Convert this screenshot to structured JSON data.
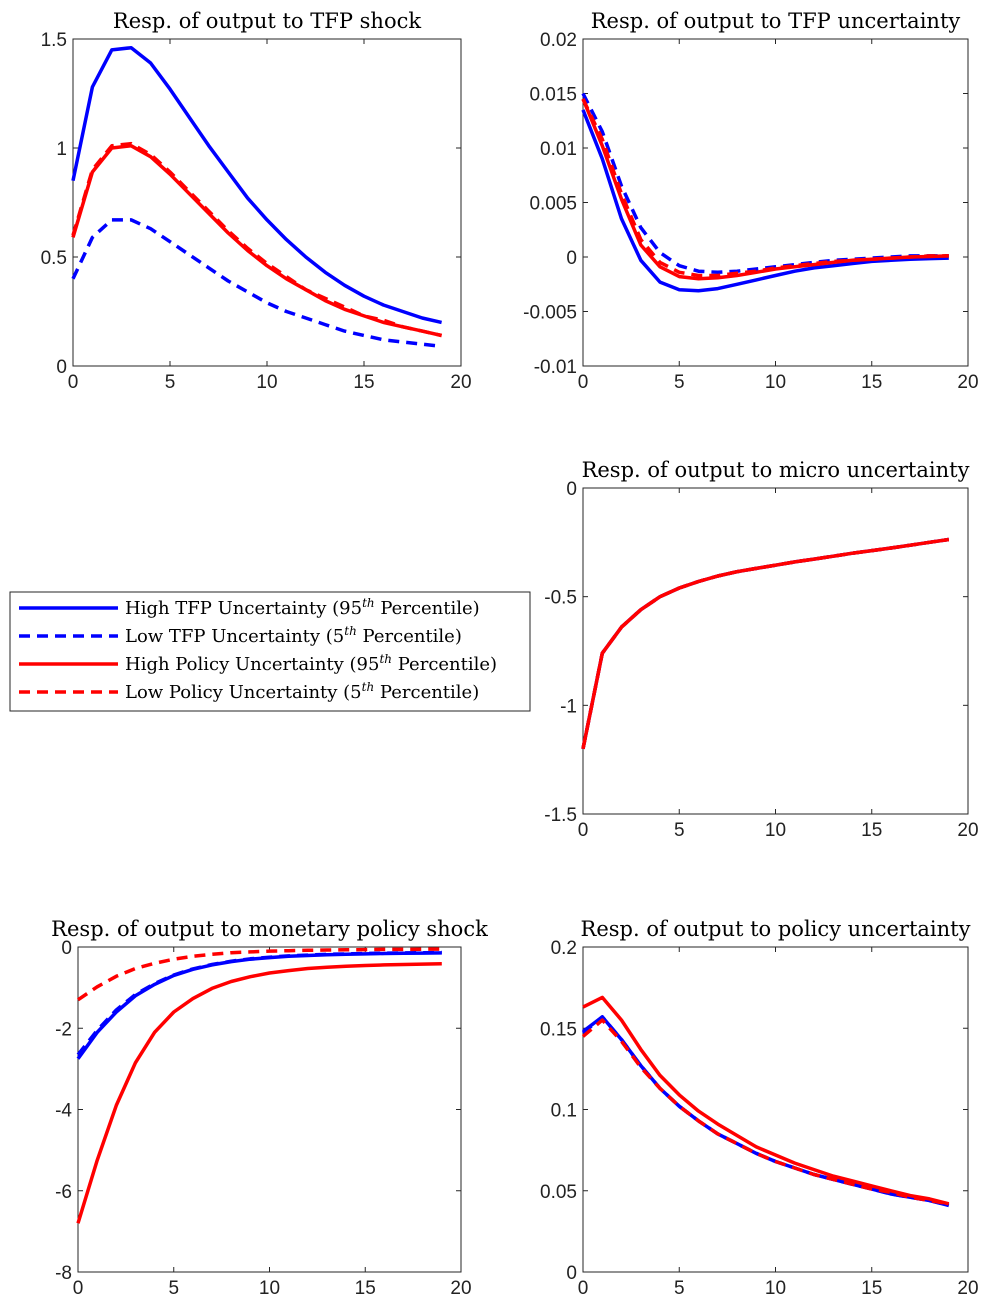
{
  "legend": {
    "entries": [
      {
        "pre": "High TFP Uncertainty (95",
        "sup": "th",
        "post": " Percentile)",
        "color": "#0000ff",
        "dash": false
      },
      {
        "pre": "Low TFP Uncertainty (5",
        "sup": "th",
        "post": " Percentile)",
        "color": "#0000ff",
        "dash": true
      },
      {
        "pre": "High Policy Uncertainty (95",
        "sup": "th",
        "post": " Percentile)",
        "color": "#ff0000",
        "dash": false
      },
      {
        "pre": "Low Policy Uncertainty (5",
        "sup": "th",
        "post": " Percentile)",
        "color": "#ff0000",
        "dash": true
      }
    ]
  },
  "chart_data": [
    {
      "type": "line",
      "title": "Resp. of output to TFP shock",
      "xlim": [
        0,
        20
      ],
      "ylim": [
        0,
        1.5
      ],
      "xticks": [
        0,
        5,
        10,
        15,
        20
      ],
      "xtick_labels": [
        "0",
        "5",
        "10",
        "15",
        "20"
      ],
      "yticks": [
        0,
        0.5,
        1,
        1.5
      ],
      "ytick_labels": [
        "0",
        "0.5",
        "1",
        "1.5"
      ],
      "x": [
        0,
        1,
        2,
        3,
        4,
        5,
        6,
        7,
        8,
        9,
        10,
        11,
        12,
        13,
        14,
        15,
        16,
        17,
        18,
        19
      ],
      "series": [
        {
          "color": "#0000ff",
          "dash": false,
          "values": [
            0.85,
            1.28,
            1.45,
            1.46,
            1.39,
            1.27,
            1.14,
            1.01,
            0.89,
            0.77,
            0.67,
            0.58,
            0.5,
            0.43,
            0.37,
            0.32,
            0.28,
            0.25,
            0.22,
            0.2
          ]
        },
        {
          "color": "#0000ff",
          "dash": true,
          "values": [
            0.4,
            0.59,
            0.67,
            0.67,
            0.63,
            0.57,
            0.51,
            0.45,
            0.39,
            0.34,
            0.29,
            0.25,
            0.22,
            0.19,
            0.16,
            0.14,
            0.12,
            0.11,
            0.1,
            0.09
          ]
        },
        {
          "color": "#ff0000",
          "dash": false,
          "values": [
            0.59,
            0.89,
            1.0,
            1.01,
            0.96,
            0.88,
            0.79,
            0.7,
            0.61,
            0.53,
            0.46,
            0.4,
            0.35,
            0.3,
            0.26,
            0.23,
            0.2,
            0.18,
            0.16,
            0.14
          ]
        },
        {
          "color": "#ff0000",
          "dash": true,
          "values": [
            0.6,
            0.9,
            1.01,
            1.02,
            0.97,
            0.89,
            0.8,
            0.71,
            0.62,
            0.54,
            0.47,
            0.41,
            0.35,
            0.31,
            0.27,
            0.23,
            0.21,
            0.18,
            0.16,
            0.14
          ]
        }
      ]
    },
    {
      "type": "line",
      "title": "Resp. of output to TFP uncertainty",
      "xlim": [
        0,
        20
      ],
      "ylim": [
        -0.01,
        0.02
      ],
      "xticks": [
        0,
        5,
        10,
        15,
        20
      ],
      "xtick_labels": [
        "0",
        "5",
        "10",
        "15",
        "20"
      ],
      "yticks": [
        -0.01,
        -0.005,
        0,
        0.005,
        0.01,
        0.015,
        0.02
      ],
      "ytick_labels": [
        "-0.01",
        "-0.005",
        "0",
        "0.005",
        "0.01",
        "0.015",
        "0.02"
      ],
      "x": [
        0,
        1,
        2,
        3,
        4,
        5,
        6,
        7,
        8,
        9,
        10,
        11,
        12,
        13,
        14,
        15,
        16,
        17,
        18,
        19
      ],
      "series": [
        {
          "color": "#0000ff",
          "dash": false,
          "values": [
            0.0135,
            0.009,
            0.0035,
            -0.0003,
            -0.0023,
            -0.003,
            -0.0031,
            -0.0029,
            -0.0025,
            -0.0021,
            -0.0017,
            -0.0013,
            -0.001,
            -0.0008,
            -0.0006,
            -0.0004,
            -0.0003,
            -0.0002,
            -0.00015,
            -0.0001
          ]
        },
        {
          "color": "#0000ff",
          "dash": true,
          "values": [
            0.015,
            0.0115,
            0.0065,
            0.0027,
            0.0004,
            -0.0008,
            -0.0013,
            -0.0014,
            -0.0013,
            -0.0011,
            -0.0009,
            -0.0007,
            -0.0005,
            -0.0003,
            -0.0002,
            -0.0001,
            0,
            0.0001,
            0.0001,
            0.0001
          ]
        },
        {
          "color": "#ff0000",
          "dash": false,
          "values": [
            0.0145,
            0.0102,
            0.0053,
            0.0011,
            -0.0009,
            -0.0018,
            -0.002,
            -0.0019,
            -0.0017,
            -0.0014,
            -0.0011,
            -0.0009,
            -0.0007,
            -0.0005,
            -0.0003,
            -0.0002,
            -0.0001,
            0,
            5e-05,
            0.0001
          ]
        },
        {
          "color": "#ff0000",
          "dash": true,
          "values": [
            0.0145,
            0.0108,
            0.0058,
            0.0016,
            -0.0005,
            -0.0014,
            -0.0017,
            -0.0017,
            -0.0015,
            -0.0013,
            -0.001,
            -0.0008,
            -0.0006,
            -0.0004,
            -0.0003,
            -0.0002,
            -0.0001,
            0,
            0.0001,
            0.0001
          ]
        }
      ]
    },
    {
      "type": "line",
      "title": "Resp. of output to micro uncertainty",
      "xlim": [
        0,
        20
      ],
      "ylim": [
        -1.5,
        0
      ],
      "xticks": [
        0,
        5,
        10,
        15,
        20
      ],
      "xtick_labels": [
        "0",
        "5",
        "10",
        "15",
        "20"
      ],
      "yticks": [
        -1.5,
        -1,
        -0.5,
        0
      ],
      "ytick_labels": [
        "-1.5",
        "-1",
        "-0.5",
        "0"
      ],
      "x": [
        0,
        1,
        2,
        3,
        4,
        5,
        6,
        7,
        8,
        9,
        10,
        11,
        12,
        13,
        14,
        15,
        16,
        17,
        18,
        19
      ],
      "series": [
        {
          "color": "#0000ff",
          "dash": false,
          "values": [
            -1.2,
            -0.76,
            -0.64,
            -0.56,
            -0.5,
            -0.46,
            -0.43,
            -0.405,
            -0.385,
            -0.37,
            -0.355,
            -0.34,
            -0.327,
            -0.314,
            -0.3,
            -0.288,
            -0.276,
            -0.263,
            -0.25,
            -0.237
          ]
        },
        {
          "color": "#0000ff",
          "dash": true,
          "values": [
            -1.2,
            -0.76,
            -0.64,
            -0.56,
            -0.5,
            -0.46,
            -0.43,
            -0.405,
            -0.385,
            -0.37,
            -0.355,
            -0.34,
            -0.327,
            -0.314,
            -0.3,
            -0.288,
            -0.276,
            -0.263,
            -0.25,
            -0.237
          ]
        },
        {
          "color": "#ff0000",
          "dash": true,
          "values": [
            -1.2,
            -0.76,
            -0.64,
            -0.56,
            -0.5,
            -0.46,
            -0.43,
            -0.405,
            -0.385,
            -0.37,
            -0.355,
            -0.34,
            -0.327,
            -0.314,
            -0.3,
            -0.288,
            -0.276,
            -0.263,
            -0.25,
            -0.237
          ]
        },
        {
          "color": "#ff0000",
          "dash": false,
          "values": [
            -1.2,
            -0.76,
            -0.64,
            -0.56,
            -0.5,
            -0.46,
            -0.43,
            -0.405,
            -0.385,
            -0.37,
            -0.355,
            -0.34,
            -0.327,
            -0.314,
            -0.3,
            -0.288,
            -0.276,
            -0.263,
            -0.25,
            -0.237
          ]
        }
      ]
    },
    {
      "type": "line",
      "title": "Resp. of output to monetary policy shock",
      "xlim": [
        0,
        20
      ],
      "ylim": [
        -8,
        0
      ],
      "xticks": [
        0,
        5,
        10,
        15,
        20
      ],
      "xtick_labels": [
        "0",
        "5",
        "10",
        "15",
        "20"
      ],
      "yticks": [
        -8,
        -6,
        -4,
        -2,
        0
      ],
      "ytick_labels": [
        "-8",
        "-6",
        "-4",
        "-2",
        "0"
      ],
      "x": [
        0,
        1,
        2,
        3,
        4,
        5,
        6,
        7,
        8,
        9,
        10,
        11,
        12,
        13,
        14,
        15,
        16,
        17,
        18,
        19
      ],
      "series": [
        {
          "color": "#0000ff",
          "dash": false,
          "values": [
            -2.75,
            -2.1,
            -1.6,
            -1.2,
            -0.92,
            -0.7,
            -0.55,
            -0.44,
            -0.36,
            -0.3,
            -0.26,
            -0.23,
            -0.21,
            -0.19,
            -0.18,
            -0.17,
            -0.16,
            -0.155,
            -0.15,
            -0.145
          ]
        },
        {
          "color": "#0000ff",
          "dash": true,
          "values": [
            -2.65,
            -2.05,
            -1.55,
            -1.17,
            -0.9,
            -0.69,
            -0.54,
            -0.43,
            -0.35,
            -0.29,
            -0.25,
            -0.22,
            -0.2,
            -0.18,
            -0.17,
            -0.16,
            -0.15,
            -0.145,
            -0.14,
            -0.135
          ]
        },
        {
          "color": "#ff0000",
          "dash": false,
          "values": [
            -6.8,
            -5.25,
            -3.9,
            -2.85,
            -2.1,
            -1.6,
            -1.27,
            -1.02,
            -0.85,
            -0.73,
            -0.64,
            -0.58,
            -0.53,
            -0.5,
            -0.475,
            -0.455,
            -0.44,
            -0.43,
            -0.42,
            -0.41
          ]
        },
        {
          "color": "#ff0000",
          "dash": true,
          "values": [
            -1.3,
            -0.98,
            -0.72,
            -0.53,
            -0.4,
            -0.3,
            -0.23,
            -0.18,
            -0.14,
            -0.12,
            -0.1,
            -0.09,
            -0.08,
            -0.075,
            -0.07,
            -0.065,
            -0.06,
            -0.058,
            -0.055,
            -0.052
          ]
        }
      ]
    },
    {
      "type": "line",
      "title": "Resp. of output to policy uncertainty",
      "xlim": [
        0,
        20
      ],
      "ylim": [
        0,
        0.2
      ],
      "xticks": [
        0,
        5,
        10,
        15,
        20
      ],
      "xtick_labels": [
        "0",
        "5",
        "10",
        "15",
        "20"
      ],
      "yticks": [
        0,
        0.05,
        0.1,
        0.15,
        0.2
      ],
      "ytick_labels": [
        "0",
        "0.05",
        "0.1",
        "0.15",
        "0.2"
      ],
      "x": [
        0,
        1,
        2,
        3,
        4,
        5,
        6,
        7,
        8,
        9,
        10,
        11,
        12,
        13,
        14,
        15,
        16,
        17,
        18,
        19
      ],
      "series": [
        {
          "color": "#0000ff",
          "dash": false,
          "values": [
            0.148,
            0.157,
            0.143,
            0.127,
            0.113,
            0.102,
            0.093,
            0.085,
            0.079,
            0.073,
            0.068,
            0.064,
            0.06,
            0.057,
            0.054,
            0.051,
            0.048,
            0.046,
            0.044,
            0.041
          ]
        },
        {
          "color": "#0000ff",
          "dash": true,
          "values": [
            0.147,
            0.157,
            0.143,
            0.127,
            0.113,
            0.102,
            0.093,
            0.085,
            0.079,
            0.073,
            0.068,
            0.064,
            0.06,
            0.057,
            0.054,
            0.051,
            0.048,
            0.046,
            0.044,
            0.041
          ]
        },
        {
          "color": "#ff0000",
          "dash": false,
          "values": [
            0.163,
            0.169,
            0.155,
            0.137,
            0.121,
            0.109,
            0.099,
            0.091,
            0.084,
            0.077,
            0.072,
            0.067,
            0.063,
            0.059,
            0.056,
            0.053,
            0.05,
            0.047,
            0.045,
            0.042
          ]
        },
        {
          "color": "#ff0000",
          "dash": true,
          "values": [
            0.145,
            0.155,
            0.142,
            0.126,
            0.113,
            0.102,
            0.093,
            0.085,
            0.079,
            0.073,
            0.068,
            0.064,
            0.06,
            0.057,
            0.054,
            0.051,
            0.049,
            0.046,
            0.044,
            0.042
          ]
        }
      ]
    }
  ]
}
